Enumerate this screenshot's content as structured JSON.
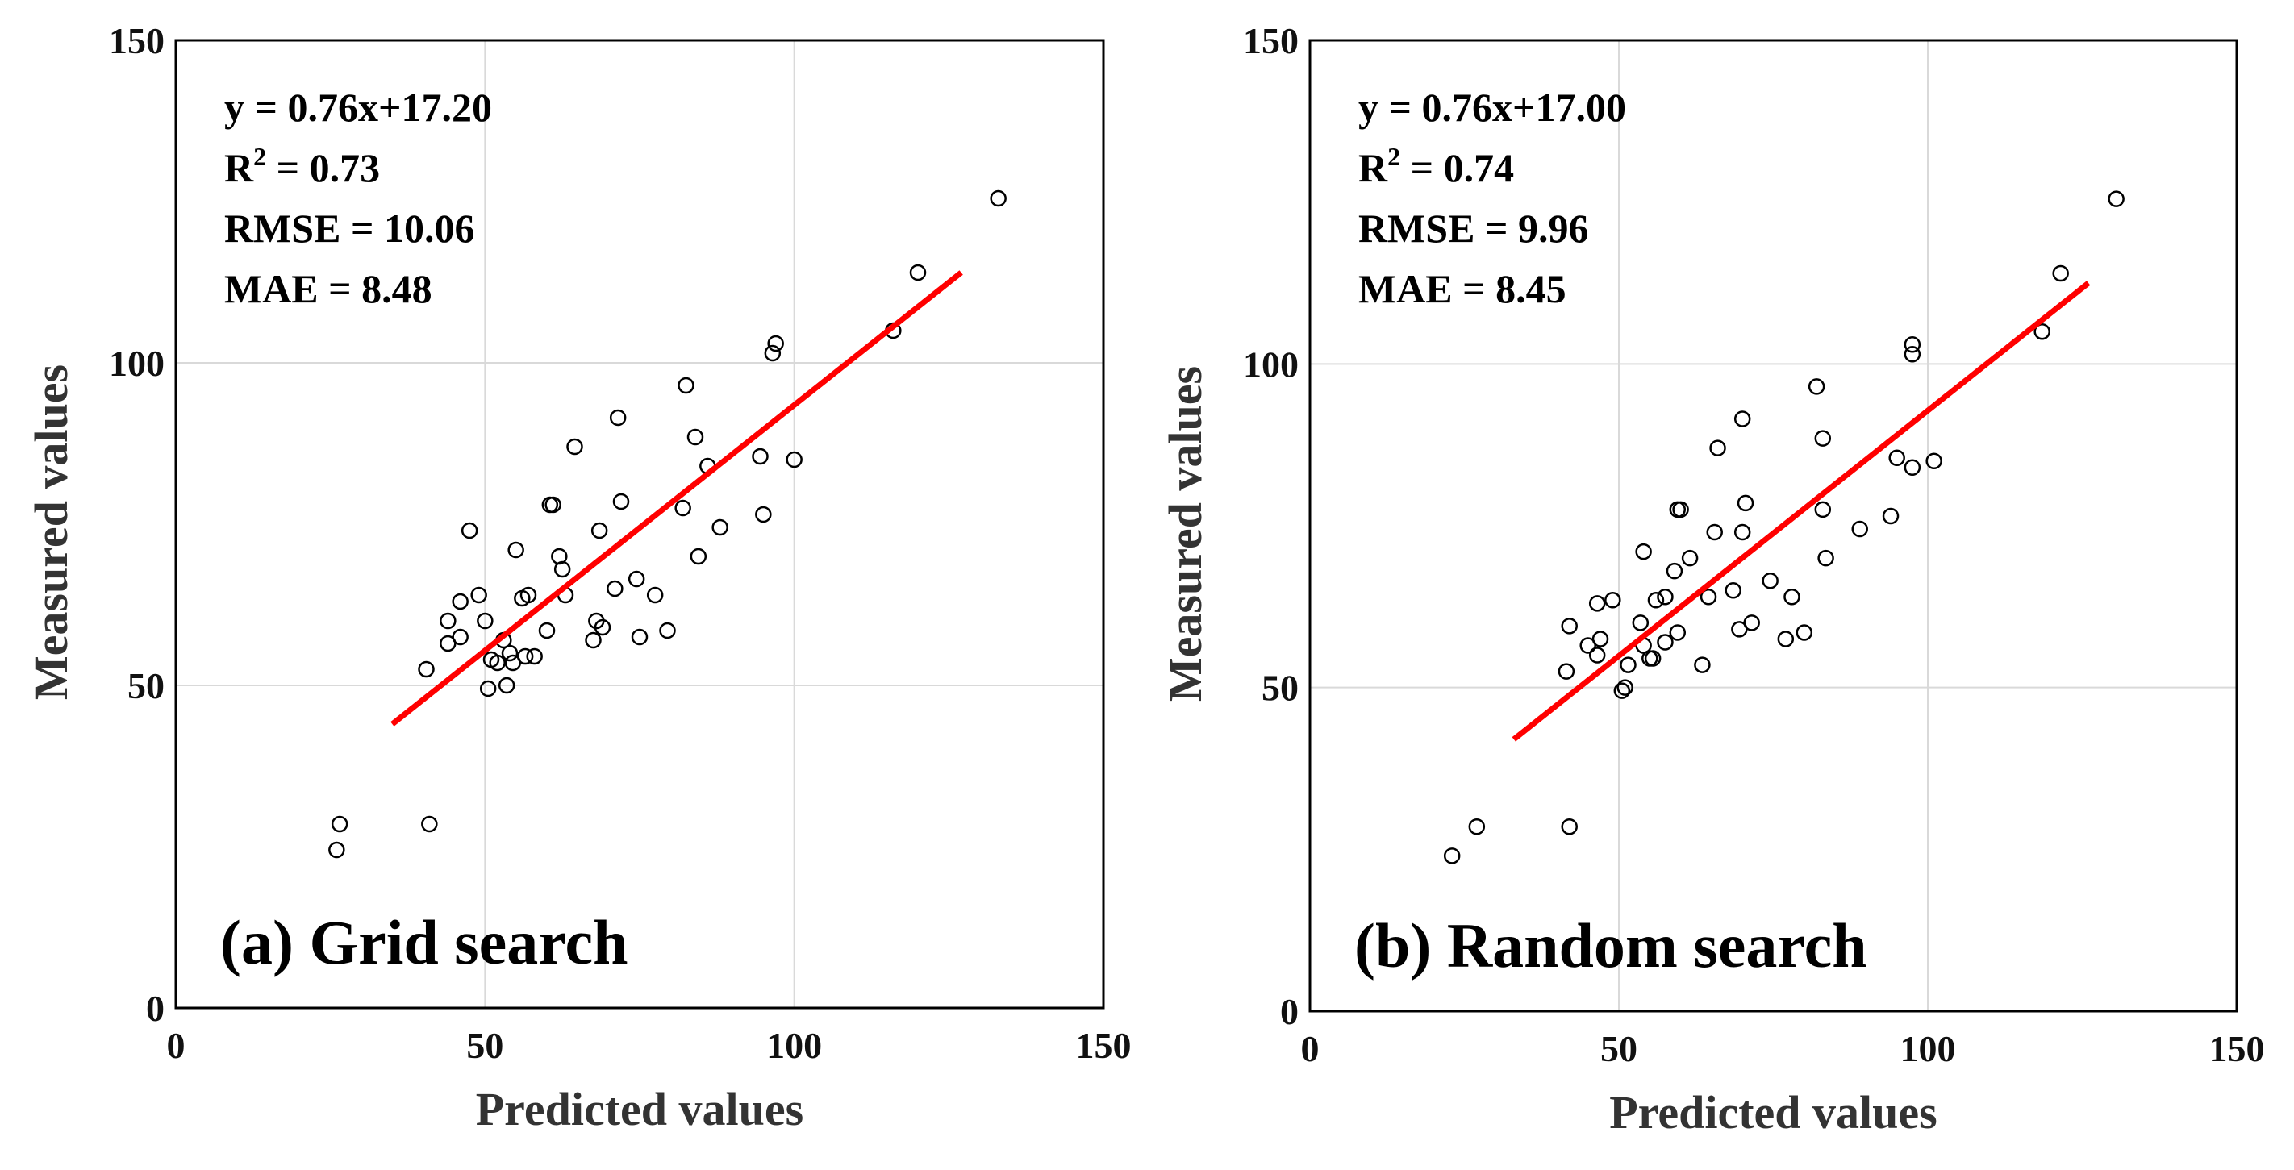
{
  "chart_data": [
    {
      "type": "scatter",
      "title": "(a) Grid search",
      "xlabel": "Predicted values",
      "ylabel": "Measured values",
      "xlim": [
        0,
        150
      ],
      "ylim": [
        0,
        150
      ],
      "xticks": [
        "0",
        "50",
        "100",
        "150"
      ],
      "yticks": [
        "0",
        "50",
        "100",
        "150"
      ],
      "grid": true,
      "stats": {
        "equation": "y = 0.76x+17.20",
        "r2_prefix": "R",
        "r2_exp": "2",
        "r2_value": " = 0.73",
        "rmse": "RMSE = 10.06",
        "mae": "MAE = 8.48"
      },
      "fit_line": {
        "color": "#ff0000",
        "x": [
          35,
          127
        ],
        "y": [
          44,
          114
        ]
      },
      "points": [
        [
          26,
          24.5
        ],
        [
          26.5,
          28.5
        ],
        [
          41,
          28.5
        ],
        [
          40.5,
          52.5
        ],
        [
          44,
          56.5
        ],
        [
          44,
          60
        ],
        [
          46,
          57.5
        ],
        [
          46,
          63
        ],
        [
          47.5,
          74
        ],
        [
          49,
          64
        ],
        [
          50,
          60
        ],
        [
          50.5,
          49.5
        ],
        [
          51,
          54
        ],
        [
          52,
          53.5
        ],
        [
          53,
          57
        ],
        [
          53.5,
          50
        ],
        [
          54,
          55
        ],
        [
          54.5,
          53.5
        ],
        [
          55,
          71
        ],
        [
          56,
          63.5
        ],
        [
          56.5,
          54.5
        ],
        [
          57,
          64
        ],
        [
          58,
          54.5
        ],
        [
          60,
          58.5
        ],
        [
          60.5,
          78
        ],
        [
          61,
          78
        ],
        [
          62,
          70
        ],
        [
          62.5,
          68
        ],
        [
          63,
          64
        ],
        [
          64.5,
          87
        ],
        [
          67.5,
          57
        ],
        [
          68,
          60
        ],
        [
          68.5,
          74
        ],
        [
          69,
          59
        ],
        [
          71.5,
          91.5
        ],
        [
          72,
          78.5
        ],
        [
          71,
          65
        ],
        [
          74.5,
          66.5
        ],
        [
          75,
          57.5
        ],
        [
          77.5,
          64
        ],
        [
          79.5,
          58.5
        ],
        [
          82,
          77.5
        ],
        [
          82.5,
          96.5
        ],
        [
          84,
          88.5
        ],
        [
          84.5,
          70
        ],
        [
          86,
          84
        ],
        [
          88,
          74.5
        ],
        [
          94.5,
          85.5
        ],
        [
          95,
          76.5
        ],
        [
          96.5,
          101.5
        ],
        [
          97,
          103
        ],
        [
          100,
          85
        ],
        [
          116,
          105
        ],
        [
          120,
          114
        ],
        [
          133,
          125.5
        ]
      ]
    },
    {
      "type": "scatter",
      "title": "(b) Random search",
      "xlabel": "Predicted values",
      "ylabel": "Measured values",
      "xlim": [
        0,
        150
      ],
      "ylim": [
        0,
        150
      ],
      "xticks": [
        "0",
        "50",
        "100",
        "150"
      ],
      "yticks": [
        "0",
        "50",
        "100",
        "150"
      ],
      "grid": true,
      "stats": {
        "equation": "y = 0.76x+17.00",
        "r2_prefix": "R",
        "r2_exp": "2",
        "r2_value": " = 0.74",
        "rmse": "RMSE = 9.96",
        "mae": "MAE = 8.45"
      },
      "fit_line": {
        "color": "#ff0000",
        "x": [
          33,
          126
        ],
        "y": [
          42,
          112.5
        ]
      },
      "points": [
        [
          23,
          24
        ],
        [
          27,
          28.5
        ],
        [
          42,
          28.5
        ],
        [
          41.5,
          52.5
        ],
        [
          42,
          59.5
        ],
        [
          45,
          56.5
        ],
        [
          46.5,
          55
        ],
        [
          47,
          57.5
        ],
        [
          46.5,
          63
        ],
        [
          49,
          63.5
        ],
        [
          50.5,
          49.5
        ],
        [
          51,
          50
        ],
        [
          51.5,
          53.5
        ],
        [
          53.5,
          60
        ],
        [
          54,
          56.5
        ],
        [
          54,
          71
        ],
        [
          55,
          54.5
        ],
        [
          55.5,
          54.5
        ],
        [
          56,
          63.5
        ],
        [
          57.5,
          57
        ],
        [
          57.5,
          64
        ],
        [
          59,
          68
        ],
        [
          59.5,
          58.5
        ],
        [
          59.5,
          77.5
        ],
        [
          60,
          77.5
        ],
        [
          61.5,
          70
        ],
        [
          63.5,
          53.5
        ],
        [
          64.5,
          64
        ],
        [
          65.5,
          74
        ],
        [
          66,
          87
        ],
        [
          68.5,
          65
        ],
        [
          69.5,
          59
        ],
        [
          70,
          74
        ],
        [
          70,
          91.5
        ],
        [
          70.5,
          78.5
        ],
        [
          71.5,
          60
        ],
        [
          74.5,
          66.5
        ],
        [
          77,
          57.5
        ],
        [
          78,
          64
        ],
        [
          80,
          58.5
        ],
        [
          82,
          96.5
        ],
        [
          83,
          88.5
        ],
        [
          83,
          77.5
        ],
        [
          83.5,
          70
        ],
        [
          89,
          74.5
        ],
        [
          94,
          76.5
        ],
        [
          95,
          85.5
        ],
        [
          97.5,
          101.5
        ],
        [
          97.5,
          103
        ],
        [
          97.5,
          84
        ],
        [
          101,
          85
        ],
        [
          118.5,
          105
        ],
        [
          121.5,
          114
        ],
        [
          130.5,
          125.5
        ]
      ]
    }
  ]
}
